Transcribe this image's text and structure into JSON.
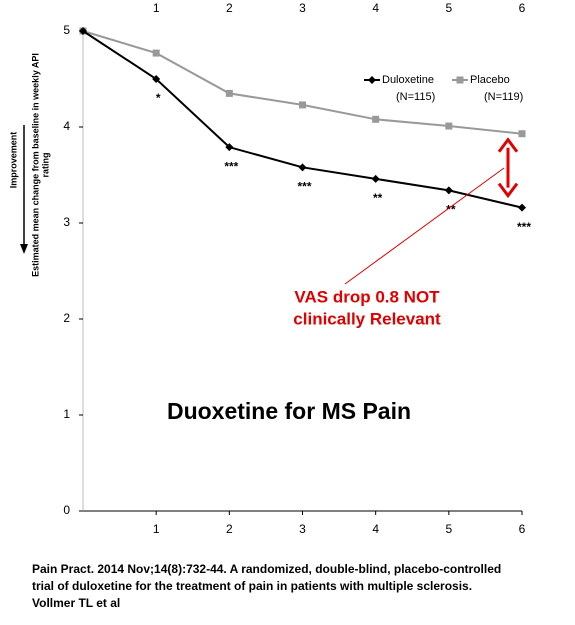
{
  "chart_data": {
    "type": "line",
    "title": "Duoxetine for MS Pain",
    "y_label": "Improvement",
    "y_sublabel": [
      "Estimated mean change from baseline in weekly API",
      "rating"
    ],
    "x": [
      0,
      1,
      2,
      3,
      4,
      5,
      6
    ],
    "xlim": [
      0,
      6
    ],
    "xticks": [
      1,
      2,
      3,
      4,
      5,
      6
    ],
    "ylim": [
      0,
      5
    ],
    "yticks": [
      0,
      1,
      2,
      3,
      4,
      5
    ],
    "grid": false,
    "legend": "upper right",
    "series": [
      {
        "name": "Duloxetine",
        "n_label": "(N=115)",
        "color": "#000000",
        "marker": "diamond",
        "values": [
          5,
          4.5,
          3.79,
          3.58,
          3.46,
          3.34,
          3.16
        ]
      },
      {
        "name": "Placebo",
        "n_label": "(N=119)",
        "color": "#999999",
        "marker": "square",
        "values": [
          5,
          4.77,
          4.35,
          4.23,
          4.08,
          4.01,
          3.93
        ]
      }
    ],
    "significance": [
      "*",
      "***",
      "***",
      "**",
      "**",
      "***"
    ],
    "annotation": [
      "VAS drop 0.8 NOT",
      "clinically Relevant"
    ],
    "annotation_color": "#e00000",
    "citation": [
      "Pain Pract. 2014 Nov;14(8):732-44. A randomized, double-blind, placebo-controlled",
      "trial of duloxetine for the treatment of pain in patients with multiple sclerosis.",
      "Vollmer TL et al"
    ]
  }
}
